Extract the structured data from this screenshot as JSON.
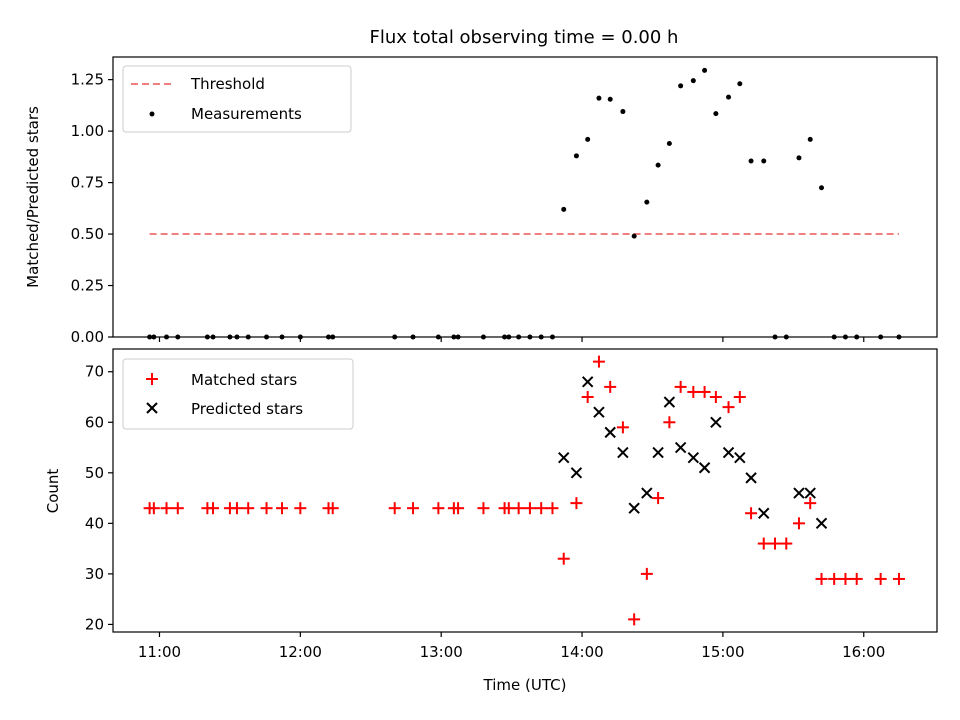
{
  "figure": {
    "title": "Flux total observing time = 0.00 h",
    "xlabel": "Time (UTC)",
    "xticks": [
      {
        "t": 11.0,
        "label": "11:00"
      },
      {
        "t": 12.0,
        "label": "12:00"
      },
      {
        "t": 13.0,
        "label": "13:00"
      },
      {
        "t": 14.0,
        "label": "14:00"
      },
      {
        "t": 15.0,
        "label": "15:00"
      },
      {
        "t": 16.0,
        "label": "16:00"
      }
    ],
    "xlim": [
      10.67,
      16.52
    ]
  },
  "chart_data": [
    {
      "type": "scatter",
      "ylabel": "Matched/Predicted stars",
      "ylim": [
        0,
        1.36
      ],
      "yticks": [
        "0.00",
        "0.25",
        "0.50",
        "0.75",
        "1.00",
        "1.25"
      ],
      "legend_position": "top-left",
      "threshold": {
        "name": "Threshold",
        "x": [
          10.93,
          16.25
        ],
        "y": 0.5,
        "color": "#f08080"
      },
      "series": [
        {
          "name": "Measurements",
          "color": "#000000",
          "points": [
            [
              10.93,
              0
            ],
            [
              10.96,
              0
            ],
            [
              11.05,
              0
            ],
            [
              11.13,
              0
            ],
            [
              11.34,
              0
            ],
            [
              11.38,
              0
            ],
            [
              11.5,
              0
            ],
            [
              11.55,
              0
            ],
            [
              11.63,
              0
            ],
            [
              11.76,
              0
            ],
            [
              11.87,
              0
            ],
            [
              12.0,
              0
            ],
            [
              12.2,
              0
            ],
            [
              12.23,
              0
            ],
            [
              12.67,
              0
            ],
            [
              12.8,
              0
            ],
            [
              12.98,
              0
            ],
            [
              13.09,
              0
            ],
            [
              13.12,
              0
            ],
            [
              13.3,
              0
            ],
            [
              13.45,
              0
            ],
            [
              13.48,
              0
            ],
            [
              13.55,
              0
            ],
            [
              13.63,
              0
            ],
            [
              13.71,
              0
            ],
            [
              13.79,
              0
            ],
            [
              13.87,
              0.62
            ],
            [
              13.96,
              0.88
            ],
            [
              14.04,
              0.96
            ],
            [
              14.12,
              1.16
            ],
            [
              14.2,
              1.155
            ],
            [
              14.29,
              1.095
            ],
            [
              14.37,
              0.49
            ],
            [
              14.46,
              0.655
            ],
            [
              14.54,
              0.835
            ],
            [
              14.62,
              0.94
            ],
            [
              14.7,
              1.22
            ],
            [
              14.79,
              1.245
            ],
            [
              14.87,
              1.295
            ],
            [
              14.95,
              1.085
            ],
            [
              15.04,
              1.165
            ],
            [
              15.12,
              1.23
            ],
            [
              15.2,
              0.855
            ],
            [
              15.29,
              0.855
            ],
            [
              15.37,
              0
            ],
            [
              15.45,
              0
            ],
            [
              15.54,
              0.87
            ],
            [
              15.62,
              0.96
            ],
            [
              15.7,
              0.725
            ],
            [
              15.79,
              0
            ],
            [
              15.87,
              0
            ],
            [
              15.95,
              0
            ],
            [
              16.12,
              0
            ],
            [
              16.25,
              0
            ]
          ]
        }
      ]
    },
    {
      "type": "scatter",
      "ylabel": "Count",
      "ylim": [
        18.5,
        74.5
      ],
      "yticks": [
        "20",
        "30",
        "40",
        "50",
        "60",
        "70"
      ],
      "legend_position": "top-left",
      "series": [
        {
          "name": "Matched stars",
          "color": "#ff0000",
          "marker": "plus",
          "points": [
            [
              10.93,
              43
            ],
            [
              10.96,
              43
            ],
            [
              11.05,
              43
            ],
            [
              11.13,
              43
            ],
            [
              11.34,
              43
            ],
            [
              11.38,
              43
            ],
            [
              11.5,
              43
            ],
            [
              11.55,
              43
            ],
            [
              11.63,
              43
            ],
            [
              11.76,
              43
            ],
            [
              11.87,
              43
            ],
            [
              12.0,
              43
            ],
            [
              12.2,
              43
            ],
            [
              12.23,
              43
            ],
            [
              12.67,
              43
            ],
            [
              12.8,
              43
            ],
            [
              12.98,
              43
            ],
            [
              13.09,
              43
            ],
            [
              13.12,
              43
            ],
            [
              13.3,
              43
            ],
            [
              13.45,
              43
            ],
            [
              13.48,
              43
            ],
            [
              13.55,
              43
            ],
            [
              13.63,
              43
            ],
            [
              13.71,
              43
            ],
            [
              13.79,
              43
            ],
            [
              13.87,
              33
            ],
            [
              13.96,
              44
            ],
            [
              14.04,
              65
            ],
            [
              14.12,
              72
            ],
            [
              14.2,
              67
            ],
            [
              14.29,
              59
            ],
            [
              14.37,
              21
            ],
            [
              14.46,
              30
            ],
            [
              14.54,
              45
            ],
            [
              14.62,
              60
            ],
            [
              14.7,
              67
            ],
            [
              14.79,
              66
            ],
            [
              14.87,
              66
            ],
            [
              14.95,
              65
            ],
            [
              15.04,
              63
            ],
            [
              15.12,
              65
            ],
            [
              15.2,
              42
            ],
            [
              15.29,
              36
            ],
            [
              15.37,
              36
            ],
            [
              15.45,
              36
            ],
            [
              15.54,
              40
            ],
            [
              15.62,
              44
            ],
            [
              15.7,
              29
            ],
            [
              15.79,
              29
            ],
            [
              15.87,
              29
            ],
            [
              15.95,
              29
            ],
            [
              16.12,
              29
            ],
            [
              16.25,
              29
            ]
          ]
        },
        {
          "name": "Predicted stars",
          "color": "#000000",
          "marker": "x",
          "points": [
            [
              13.87,
              53
            ],
            [
              13.96,
              50
            ],
            [
              14.04,
              68
            ],
            [
              14.12,
              62
            ],
            [
              14.2,
              58
            ],
            [
              14.29,
              54
            ],
            [
              14.37,
              43
            ],
            [
              14.46,
              46
            ],
            [
              14.54,
              54
            ],
            [
              14.62,
              64
            ],
            [
              14.7,
              55
            ],
            [
              14.79,
              53
            ],
            [
              14.87,
              51
            ],
            [
              14.95,
              60
            ],
            [
              15.04,
              54
            ],
            [
              15.12,
              53
            ],
            [
              15.2,
              49
            ],
            [
              15.29,
              42
            ],
            [
              15.54,
              46
            ],
            [
              15.62,
              46
            ],
            [
              15.7,
              40
            ]
          ]
        }
      ]
    }
  ]
}
